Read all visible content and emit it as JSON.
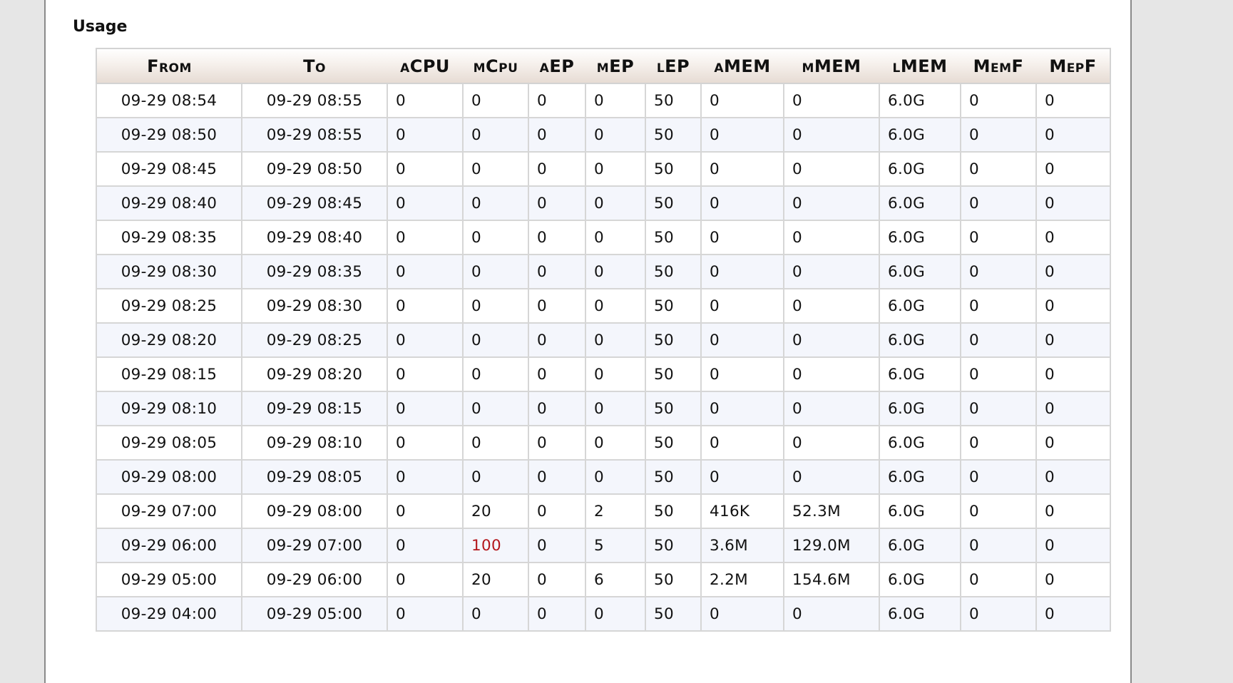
{
  "section": {
    "title": "Usage"
  },
  "table": {
    "headers": {
      "from": "From",
      "to": "To",
      "acpu": "aCPU",
      "mcpu": "mCpu",
      "aep": "aEP",
      "mep": "mEP",
      "lep": "lEP",
      "amem": "aMEM",
      "mmem": "mMEM",
      "lmem": "lMEM",
      "memf": "MemF",
      "mepf": "MepF"
    },
    "alert_color": "#b3161b",
    "rows": [
      {
        "from": "09-29 08:54",
        "to": "09-29 08:55",
        "acpu": "0",
        "mcpu": "0",
        "aep": "0",
        "mep": "0",
        "lep": "50",
        "amem": "0",
        "mmem": "0",
        "lmem": "6.0G",
        "memf": "0",
        "mepf": "0"
      },
      {
        "from": "09-29 08:50",
        "to": "09-29 08:55",
        "acpu": "0",
        "mcpu": "0",
        "aep": "0",
        "mep": "0",
        "lep": "50",
        "amem": "0",
        "mmem": "0",
        "lmem": "6.0G",
        "memf": "0",
        "mepf": "0"
      },
      {
        "from": "09-29 08:45",
        "to": "09-29 08:50",
        "acpu": "0",
        "mcpu": "0",
        "aep": "0",
        "mep": "0",
        "lep": "50",
        "amem": "0",
        "mmem": "0",
        "lmem": "6.0G",
        "memf": "0",
        "mepf": "0"
      },
      {
        "from": "09-29 08:40",
        "to": "09-29 08:45",
        "acpu": "0",
        "mcpu": "0",
        "aep": "0",
        "mep": "0",
        "lep": "50",
        "amem": "0",
        "mmem": "0",
        "lmem": "6.0G",
        "memf": "0",
        "mepf": "0"
      },
      {
        "from": "09-29 08:35",
        "to": "09-29 08:40",
        "acpu": "0",
        "mcpu": "0",
        "aep": "0",
        "mep": "0",
        "lep": "50",
        "amem": "0",
        "mmem": "0",
        "lmem": "6.0G",
        "memf": "0",
        "mepf": "0"
      },
      {
        "from": "09-29 08:30",
        "to": "09-29 08:35",
        "acpu": "0",
        "mcpu": "0",
        "aep": "0",
        "mep": "0",
        "lep": "50",
        "amem": "0",
        "mmem": "0",
        "lmem": "6.0G",
        "memf": "0",
        "mepf": "0"
      },
      {
        "from": "09-29 08:25",
        "to": "09-29 08:30",
        "acpu": "0",
        "mcpu": "0",
        "aep": "0",
        "mep": "0",
        "lep": "50",
        "amem": "0",
        "mmem": "0",
        "lmem": "6.0G",
        "memf": "0",
        "mepf": "0"
      },
      {
        "from": "09-29 08:20",
        "to": "09-29 08:25",
        "acpu": "0",
        "mcpu": "0",
        "aep": "0",
        "mep": "0",
        "lep": "50",
        "amem": "0",
        "mmem": "0",
        "lmem": "6.0G",
        "memf": "0",
        "mepf": "0"
      },
      {
        "from": "09-29 08:15",
        "to": "09-29 08:20",
        "acpu": "0",
        "mcpu": "0",
        "aep": "0",
        "mep": "0",
        "lep": "50",
        "amem": "0",
        "mmem": "0",
        "lmem": "6.0G",
        "memf": "0",
        "mepf": "0"
      },
      {
        "from": "09-29 08:10",
        "to": "09-29 08:15",
        "acpu": "0",
        "mcpu": "0",
        "aep": "0",
        "mep": "0",
        "lep": "50",
        "amem": "0",
        "mmem": "0",
        "lmem": "6.0G",
        "memf": "0",
        "mepf": "0"
      },
      {
        "from": "09-29 08:05",
        "to": "09-29 08:10",
        "acpu": "0",
        "mcpu": "0",
        "aep": "0",
        "mep": "0",
        "lep": "50",
        "amem": "0",
        "mmem": "0",
        "lmem": "6.0G",
        "memf": "0",
        "mepf": "0"
      },
      {
        "from": "09-29 08:00",
        "to": "09-29 08:05",
        "acpu": "0",
        "mcpu": "0",
        "aep": "0",
        "mep": "0",
        "lep": "50",
        "amem": "0",
        "mmem": "0",
        "lmem": "6.0G",
        "memf": "0",
        "mepf": "0"
      },
      {
        "from": "09-29 07:00",
        "to": "09-29 08:00",
        "acpu": "0",
        "mcpu": "20",
        "aep": "0",
        "mep": "2",
        "lep": "50",
        "amem": "416K",
        "mmem": "52.3M",
        "lmem": "6.0G",
        "memf": "0",
        "mepf": "0"
      },
      {
        "from": "09-29 06:00",
        "to": "09-29 07:00",
        "acpu": "0",
        "mcpu": "100",
        "aep": "0",
        "mep": "5",
        "lep": "50",
        "amem": "3.6M",
        "mmem": "129.0M",
        "lmem": "6.0G",
        "memf": "0",
        "mepf": "0",
        "alert": "mcpu"
      },
      {
        "from": "09-29 05:00",
        "to": "09-29 06:00",
        "acpu": "0",
        "mcpu": "20",
        "aep": "0",
        "mep": "6",
        "lep": "50",
        "amem": "2.2M",
        "mmem": "154.6M",
        "lmem": "6.0G",
        "memf": "0",
        "mepf": "0"
      },
      {
        "from": "09-29 04:00",
        "to": "09-29 05:00",
        "acpu": "0",
        "mcpu": "0",
        "aep": "0",
        "mep": "0",
        "lep": "50",
        "amem": "0",
        "mmem": "0",
        "lmem": "6.0G",
        "memf": "0",
        "mepf": "0"
      }
    ]
  }
}
